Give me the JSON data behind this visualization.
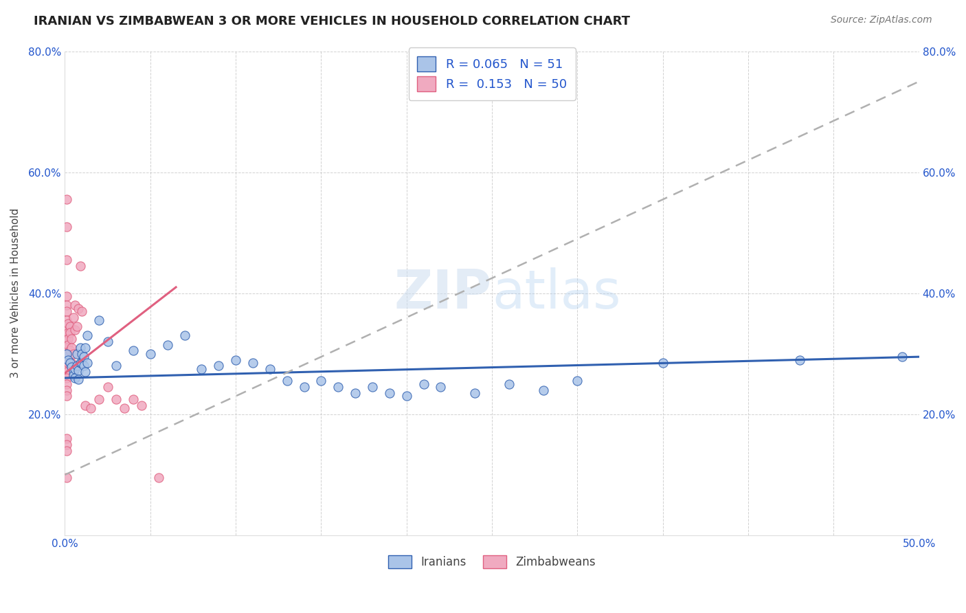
{
  "title": "IRANIAN VS ZIMBABWEAN 3 OR MORE VEHICLES IN HOUSEHOLD CORRELATION CHART",
  "source": "Source: ZipAtlas.com",
  "ylabel": "3 or more Vehicles in Household",
  "xlim": [
    0.0,
    0.5
  ],
  "ylim": [
    0.0,
    0.8
  ],
  "xticks": [
    0.0,
    0.05,
    0.1,
    0.15,
    0.2,
    0.25,
    0.3,
    0.35,
    0.4,
    0.45,
    0.5
  ],
  "yticks": [
    0.0,
    0.2,
    0.4,
    0.6,
    0.8
  ],
  "legend_iranian_R": "0.065",
  "legend_iranian_N": "51",
  "legend_zimbabwean_R": "0.153",
  "legend_zimbabwean_N": "50",
  "iranian_color": "#aac4e8",
  "zimbabwean_color": "#f0aac0",
  "iranian_line_color": "#3060b0",
  "zimbabwean_line_color": "#e06080",
  "trend_gray_color": "#b0b0b0",
  "iranian_scatter": [
    [
      0.001,
      0.3
    ],
    [
      0.002,
      0.29
    ],
    [
      0.003,
      0.285
    ],
    [
      0.004,
      0.278
    ],
    [
      0.005,
      0.27
    ],
    [
      0.005,
      0.265
    ],
    [
      0.006,
      0.275
    ],
    [
      0.006,
      0.26
    ],
    [
      0.007,
      0.28
    ],
    [
      0.007,
      0.3
    ],
    [
      0.008,
      0.272
    ],
    [
      0.008,
      0.258
    ],
    [
      0.009,
      0.31
    ],
    [
      0.009,
      0.285
    ],
    [
      0.01,
      0.3
    ],
    [
      0.01,
      0.285
    ],
    [
      0.011,
      0.295
    ],
    [
      0.011,
      0.28
    ],
    [
      0.012,
      0.27
    ],
    [
      0.012,
      0.31
    ],
    [
      0.013,
      0.33
    ],
    [
      0.013,
      0.285
    ],
    [
      0.02,
      0.355
    ],
    [
      0.025,
      0.32
    ],
    [
      0.03,
      0.28
    ],
    [
      0.04,
      0.305
    ],
    [
      0.05,
      0.3
    ],
    [
      0.06,
      0.315
    ],
    [
      0.07,
      0.33
    ],
    [
      0.08,
      0.275
    ],
    [
      0.09,
      0.28
    ],
    [
      0.1,
      0.29
    ],
    [
      0.11,
      0.285
    ],
    [
      0.12,
      0.275
    ],
    [
      0.13,
      0.255
    ],
    [
      0.14,
      0.245
    ],
    [
      0.15,
      0.255
    ],
    [
      0.16,
      0.245
    ],
    [
      0.17,
      0.235
    ],
    [
      0.18,
      0.245
    ],
    [
      0.19,
      0.235
    ],
    [
      0.2,
      0.23
    ],
    [
      0.21,
      0.25
    ],
    [
      0.22,
      0.245
    ],
    [
      0.24,
      0.235
    ],
    [
      0.26,
      0.25
    ],
    [
      0.28,
      0.24
    ],
    [
      0.3,
      0.255
    ],
    [
      0.35,
      0.285
    ],
    [
      0.43,
      0.29
    ],
    [
      0.49,
      0.295
    ]
  ],
  "zimbabwean_scatter": [
    [
      0.001,
      0.555
    ],
    [
      0.001,
      0.51
    ],
    [
      0.001,
      0.455
    ],
    [
      0.001,
      0.395
    ],
    [
      0.001,
      0.38
    ],
    [
      0.001,
      0.37
    ],
    [
      0.001,
      0.355
    ],
    [
      0.001,
      0.345
    ],
    [
      0.001,
      0.33
    ],
    [
      0.001,
      0.32
    ],
    [
      0.001,
      0.31
    ],
    [
      0.001,
      0.3
    ],
    [
      0.001,
      0.28
    ],
    [
      0.001,
      0.27
    ],
    [
      0.001,
      0.26
    ],
    [
      0.001,
      0.25
    ],
    [
      0.001,
      0.24
    ],
    [
      0.001,
      0.23
    ],
    [
      0.001,
      0.16
    ],
    [
      0.001,
      0.15
    ],
    [
      0.001,
      0.14
    ],
    [
      0.001,
      0.095
    ],
    [
      0.002,
      0.35
    ],
    [
      0.002,
      0.335
    ],
    [
      0.002,
      0.325
    ],
    [
      0.002,
      0.315
    ],
    [
      0.002,
      0.285
    ],
    [
      0.003,
      0.345
    ],
    [
      0.003,
      0.335
    ],
    [
      0.003,
      0.305
    ],
    [
      0.004,
      0.325
    ],
    [
      0.004,
      0.31
    ],
    [
      0.004,
      0.285
    ],
    [
      0.005,
      0.36
    ],
    [
      0.005,
      0.3
    ],
    [
      0.006,
      0.38
    ],
    [
      0.006,
      0.34
    ],
    [
      0.007,
      0.345
    ],
    [
      0.008,
      0.375
    ],
    [
      0.009,
      0.445
    ],
    [
      0.01,
      0.37
    ],
    [
      0.012,
      0.215
    ],
    [
      0.015,
      0.21
    ],
    [
      0.02,
      0.225
    ],
    [
      0.025,
      0.245
    ],
    [
      0.03,
      0.225
    ],
    [
      0.035,
      0.21
    ],
    [
      0.04,
      0.225
    ],
    [
      0.045,
      0.215
    ],
    [
      0.055,
      0.095
    ]
  ],
  "iranian_trend": [
    0.0,
    0.5,
    0.26,
    0.295
  ],
  "zimbabwean_pink_trend": [
    0.0,
    0.065,
    0.268,
    0.41
  ],
  "zimbabwean_gray_trend": [
    0.0,
    0.5,
    0.1,
    0.75
  ]
}
